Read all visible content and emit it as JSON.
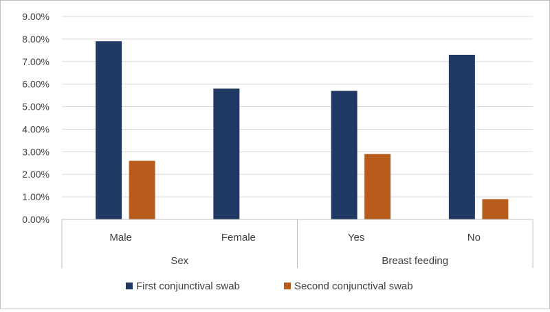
{
  "chart_data": {
    "type": "bar",
    "title": "",
    "xlabel": "",
    "ylabel": "",
    "ylim": [
      0,
      9
    ],
    "y_unit": "%",
    "y_tick_step": 1,
    "y_tick_labels": [
      "0.00%",
      "1.00%",
      "2.00%",
      "3.00%",
      "4.00%",
      "5.00%",
      "6.00%",
      "7.00%",
      "8.00%",
      "9.00%"
    ],
    "grid": true,
    "legend_position": "bottom",
    "groups": [
      {
        "label": "Sex",
        "categories": [
          "Male",
          "Female"
        ]
      },
      {
        "label": "Breast feeding",
        "categories": [
          "Yes",
          "No"
        ]
      }
    ],
    "categories": [
      "Male",
      "Female",
      "Yes",
      "No"
    ],
    "series": [
      {
        "name": "First conjunctival swab",
        "color": "#203864",
        "values": [
          7.9,
          5.8,
          5.7,
          7.3
        ]
      },
      {
        "name": "Second conjunctival swab",
        "color": "#b85c1c",
        "values": [
          2.6,
          0,
          2.9,
          0.9
        ]
      }
    ]
  }
}
